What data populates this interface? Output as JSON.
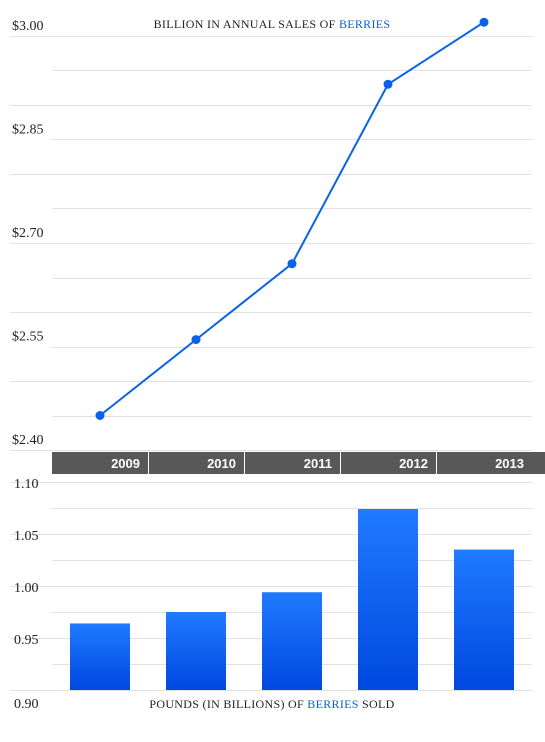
{
  "colors": {
    "line": "#0a62e8",
    "bar_top": "#1f7bff",
    "bar_bottom": "#0048e0",
    "year_band": "#58585a",
    "highlight": "#0a5fd6"
  },
  "chart_data": [
    {
      "type": "line",
      "title_parts": [
        "BILLION IN ANNUAL SALES OF ",
        "BERRIES"
      ],
      "x": [
        "2009",
        "2010",
        "2011",
        "2012",
        "2013"
      ],
      "values": [
        2.45,
        2.56,
        2.67,
        2.93,
        3.02
      ],
      "ylim": [
        2.4,
        3.0
      ],
      "yticks": [
        "$3.00",
        "$2.85",
        "$2.70",
        "$2.55",
        "$2.40"
      ],
      "grid": true
    },
    {
      "type": "bar",
      "title_parts": [
        "POUNDS (IN BILLIONS) OF ",
        "BERRIES",
        " SOLD"
      ],
      "categories": [
        "2009",
        "2010",
        "2011",
        "2012",
        "2013"
      ],
      "values": [
        0.964,
        0.975,
        0.994,
        1.074,
        1.035
      ],
      "ylim": [
        0.9,
        1.1
      ],
      "yticks": [
        "1.10",
        "1.05",
        "1.00",
        "0.95",
        "0.90"
      ],
      "grid": true
    }
  ]
}
